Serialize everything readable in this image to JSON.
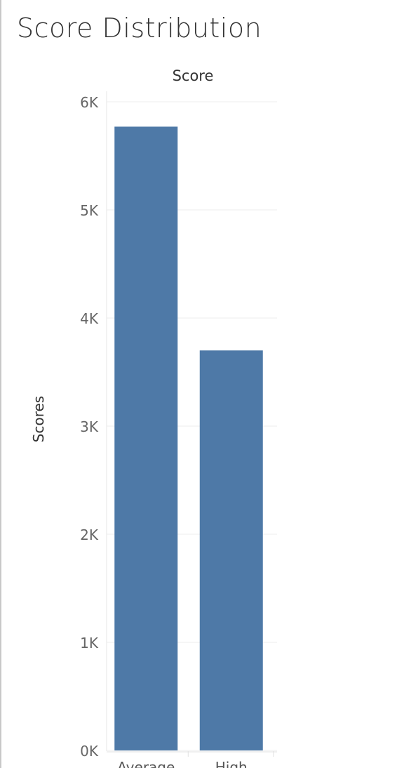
{
  "chart_data": {
    "type": "bar",
    "title": "Score Distribution",
    "column_header": "Score",
    "ylabel": "Scores",
    "xlabel": "",
    "categories": [
      "Average",
      "High"
    ],
    "values": [
      5770,
      3700
    ],
    "ylim": [
      0,
      6000
    ],
    "yticks": [
      0,
      1000,
      2000,
      3000,
      4000,
      5000,
      6000
    ],
    "ytick_labels": [
      "0K",
      "1K",
      "2K",
      "3K",
      "4K",
      "5K",
      "6K"
    ],
    "bar_color": "#4e79a7",
    "grid": true,
    "legend": "none"
  }
}
